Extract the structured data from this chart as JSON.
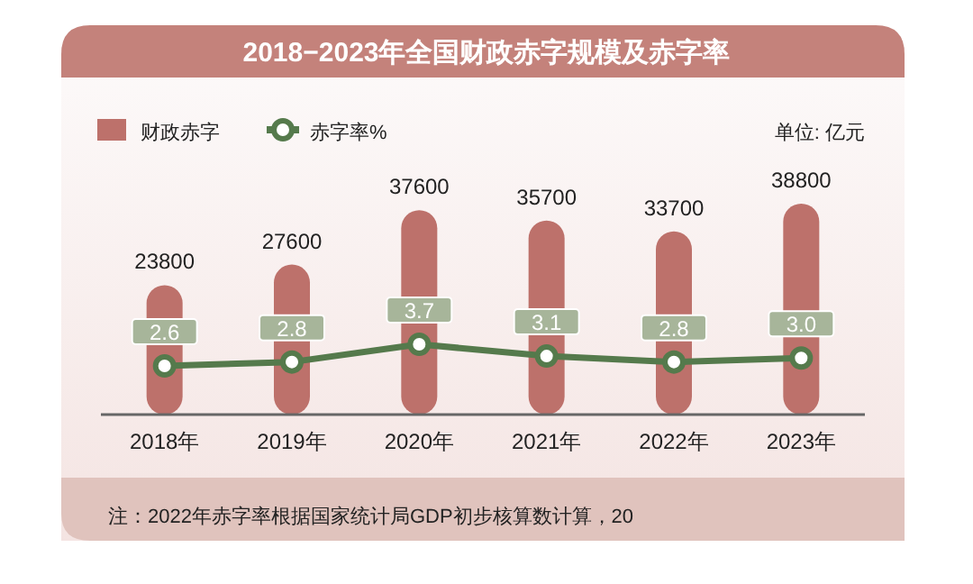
{
  "chart_data": [
    {
      "type": "bar",
      "title": "2018−2023年全国财政赤字规模及赤字率",
      "annotations": [
        "单位: 亿元",
        "注：2022年赤字率根据国家统计局GDP初步核算数计算，20"
      ],
      "categories": [
        "2018年",
        "2019年",
        "2020年",
        "2021年",
        "2022年",
        "2023年"
      ],
      "series": [
        {
          "name": "财政赤字",
          "color": "#bd716b",
          "values": [
            23800,
            27600,
            37600,
            35700,
            33700,
            38800
          ]
        }
      ],
      "data_labels": true,
      "legend": "top left"
    },
    {
      "type": "line",
      "categories": [
        null,
        null,
        null,
        null,
        null,
        null
      ],
      "series": [
        {
          "name": "赤字率%",
          "color": "#557a4c",
          "values": [
            2.6,
            2.8,
            3.7,
            3.1,
            2.8,
            3.0
          ],
          "value_labels": [
            "2.6",
            "2.8",
            "3.7",
            "3.1",
            "2.8",
            "3.0"
          ]
        }
      ],
      "marker": "circle",
      "legend": "top left"
    }
  ]
}
